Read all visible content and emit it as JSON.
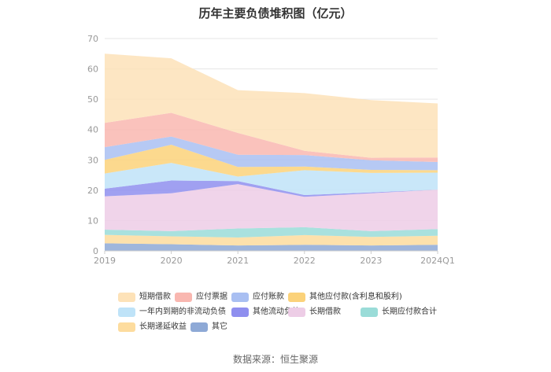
{
  "chart_data": {
    "type": "area",
    "title": "历年主要负债堆积图（亿元）",
    "categories": [
      "2019",
      "2020",
      "2021",
      "2022",
      "2023",
      "2024Q1"
    ],
    "yticks": [
      0,
      10,
      20,
      30,
      40,
      50,
      60,
      70
    ],
    "ylim": [
      0,
      70
    ],
    "grid": true,
    "legend_position": "bottom",
    "series": [
      {
        "name": "其它",
        "color": "#8ea9d6",
        "values": [
          2.5,
          2.2,
          1.8,
          2.0,
          1.8,
          2.0
        ]
      },
      {
        "name": "长期递延收益",
        "color": "#fddc9e",
        "values": [
          2.8,
          2.6,
          2.6,
          3.2,
          2.8,
          3.0
        ]
      },
      {
        "name": "长期应付款合计",
        "color": "#9adcd8",
        "values": [
          1.7,
          1.7,
          3.0,
          2.6,
          1.9,
          2.2
        ]
      },
      {
        "name": "长期借款",
        "color": "#edcde6",
        "values": [
          11.0,
          12.5,
          14.6,
          10.0,
          12.5,
          13.0
        ]
      },
      {
        "name": "其他流动负债",
        "color": "#8f8fef",
        "values": [
          2.5,
          4.2,
          1.0,
          0.6,
          0.3,
          0.0
        ]
      },
      {
        "name": "一年内到期的非流动负债",
        "color": "#bfe3f8",
        "values": [
          5.0,
          5.8,
          1.5,
          8.2,
          6.4,
          5.6
        ]
      },
      {
        "name": "其他应付款(含利息和股利)",
        "color": "#fbd27a",
        "values": [
          4.5,
          6.0,
          3.2,
          1.2,
          1.0,
          0.8
        ]
      },
      {
        "name": "应付账款",
        "color": "#a9bff2",
        "values": [
          4.2,
          2.7,
          4.0,
          3.8,
          3.2,
          2.7
        ]
      },
      {
        "name": "应付票据",
        "color": "#f9b7b0",
        "values": [
          8.0,
          7.8,
          7.2,
          1.4,
          0.8,
          1.5
        ]
      },
      {
        "name": "短期借款",
        "color": "#fde2b8",
        "values": [
          22.8,
          18.0,
          14.1,
          19.0,
          19.0,
          17.8
        ]
      }
    ]
  },
  "legend": [
    {
      "label": "短期借款",
      "color": "#fde2b8"
    },
    {
      "label": "应付票据",
      "color": "#f9b7b0"
    },
    {
      "label": "应付账款",
      "color": "#a9bff2"
    },
    {
      "label": "其他应付款(含利息和股利)",
      "color": "#fbd27a"
    },
    {
      "label": "一年内到期的非流动负债",
      "color": "#bfe3f8"
    },
    {
      "label": "其他流动负债",
      "color": "#8f8fef"
    },
    {
      "label": "长期借款",
      "color": "#edcde6"
    },
    {
      "label": "长期应付款合计",
      "color": "#9adcd8"
    },
    {
      "label": "长期递延收益",
      "color": "#fddc9e"
    },
    {
      "label": "其它",
      "color": "#8ea9d6"
    }
  ],
  "source": "数据来源：恒生聚源"
}
